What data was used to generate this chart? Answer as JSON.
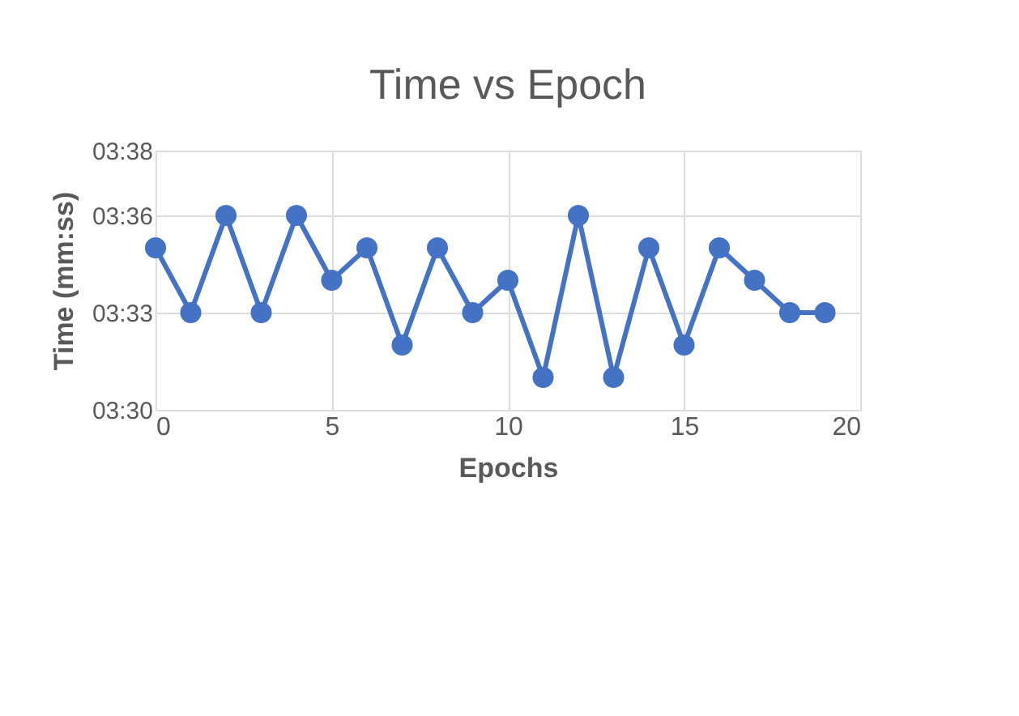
{
  "chart_data": {
    "type": "line",
    "title": "Time  vs Epoch",
    "xlabel": "Epochs",
    "ylabel": "Time (mm:ss)",
    "x": [
      0,
      1,
      2,
      3,
      4,
      5,
      6,
      7,
      8,
      9,
      10,
      11,
      12,
      13,
      14,
      15,
      16,
      17,
      18,
      19
    ],
    "series": [
      {
        "color": "#4472c4",
        "values": [
          215,
          213,
          216,
          213,
          216,
          214,
          215,
          212,
          215,
          213,
          214,
          211,
          216,
          211,
          215,
          212,
          215,
          214,
          213,
          213
        ]
      }
    ],
    "xlim": [
      0,
      20
    ],
    "xticks": [
      0,
      5,
      10,
      15,
      20
    ],
    "ylim": [
      210,
      218
    ],
    "yticks": [
      {
        "value": 210,
        "label": "03:30"
      },
      {
        "value": 213,
        "label": "03:33"
      },
      {
        "value": 216,
        "label": "03:36"
      },
      {
        "value": 218,
        "label": "03:38"
      }
    ],
    "grid": true,
    "marker": "circle",
    "line_style": "solid",
    "legend": false
  }
}
